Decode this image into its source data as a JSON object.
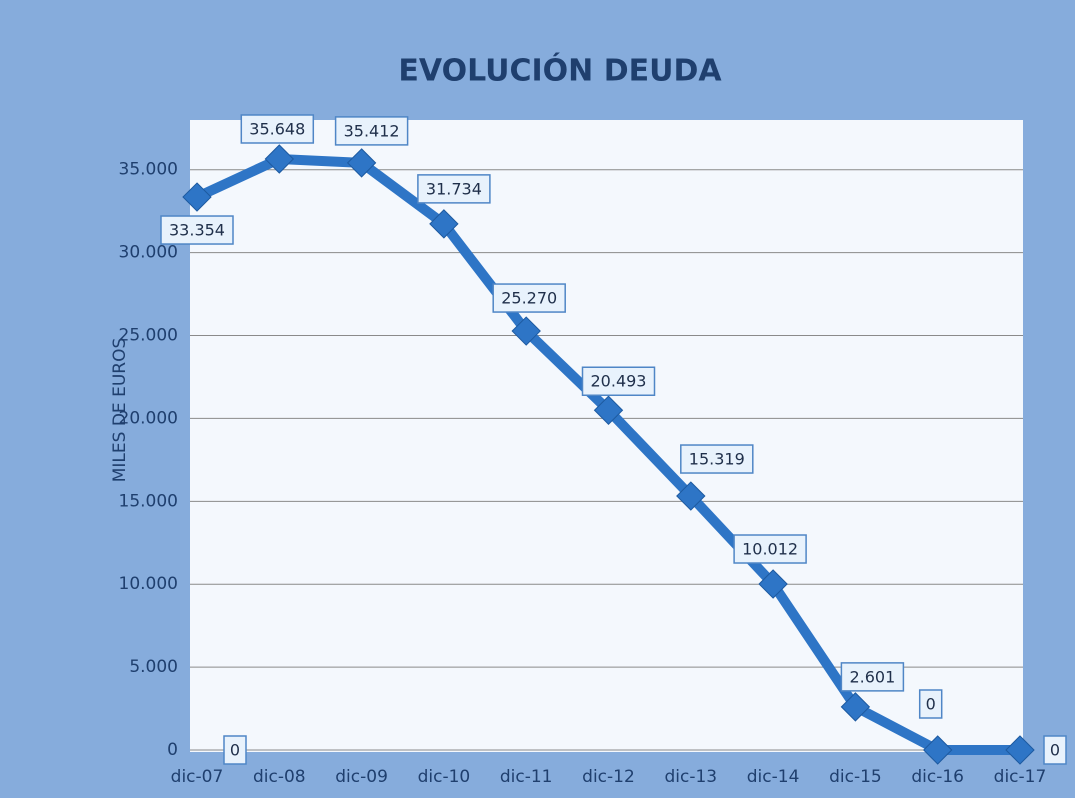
{
  "chart_data": {
    "type": "line",
    "title": "EVOLUCIÓN DEUDA",
    "y_label": "MILES DE EUROS",
    "categories": [
      "dic-07",
      "dic-08",
      "dic-09",
      "dic-10",
      "dic-11",
      "dic-12",
      "dic-13",
      "dic-14",
      "dic-15",
      "dic-16",
      "dic-17"
    ],
    "series": [
      {
        "color": "#2e75c6",
        "values": [
          33354,
          35648,
          35412,
          31734,
          25270,
          20493,
          15319,
          10012,
          2601,
          0,
          0
        ],
        "value_labels": [
          "33.354",
          "35.648",
          "35.412",
          "31.734",
          "25.270",
          "20.493",
          "15.319",
          "10.012",
          "2.601",
          "0",
          "0"
        ]
      }
    ],
    "annotations": [
      "0"
    ],
    "ylim": [
      0,
      38000
    ],
    "yticks": [
      0,
      {
        "value": 5000,
        "label": "5.000"
      },
      {
        "value": 10000,
        "label": "10.000"
      },
      {
        "value": 15000,
        "label": "15.000"
      },
      {
        "value": 20000,
        "label": "20.000"
      },
      {
        "value": 25000,
        "label": "25.000"
      },
      {
        "value": 30000,
        "label": "30.000"
      },
      {
        "value": 35000,
        "label": "35.000"
      }
    ],
    "grid": true
  }
}
